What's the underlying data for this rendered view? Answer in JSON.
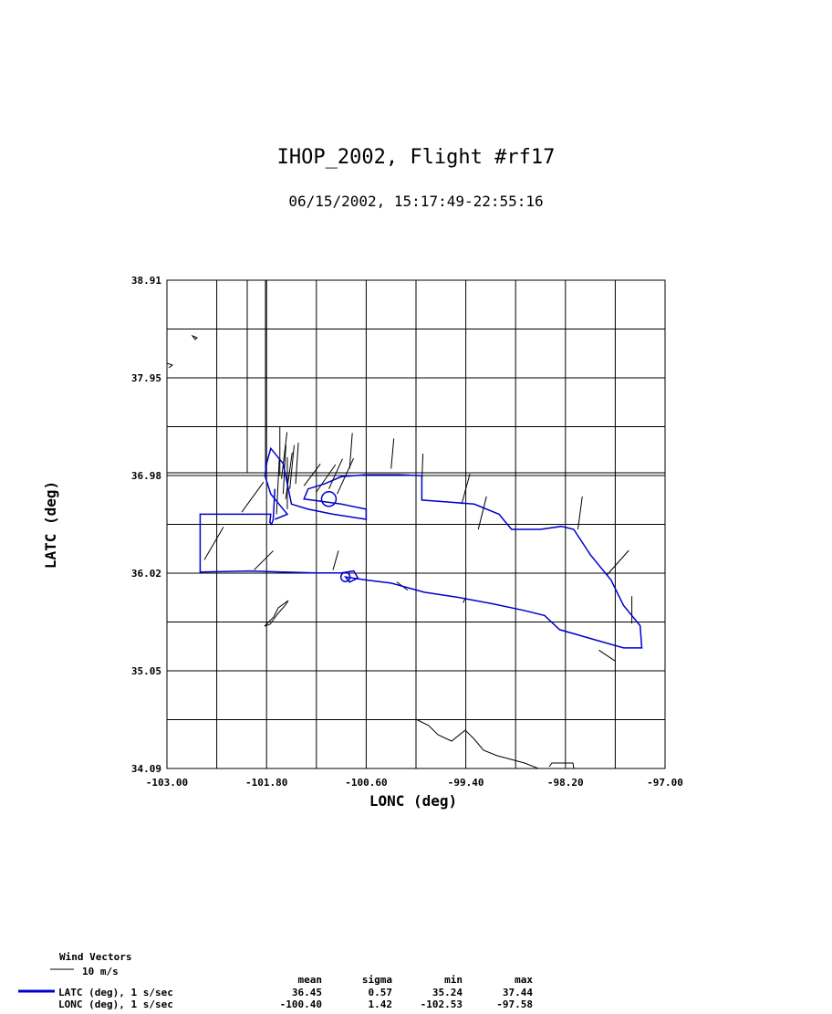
{
  "chart_data": {
    "type": "line",
    "title": "IHOP_2002, Flight #rf17",
    "subtitle": "06/15/2002, 15:17:49-22:55:16",
    "xlabel": "LONC (deg)",
    "ylabel": "LATC (deg)",
    "xlim": [
      -103.0,
      -97.0
    ],
    "ylim": [
      34.09,
      38.91
    ],
    "x_ticks": [
      "-103.00",
      "-101.80",
      "-100.60",
      "-99.40",
      "-98.20",
      "-97.00"
    ],
    "y_ticks": [
      "38.91",
      "37.95",
      "36.98",
      "36.02",
      "35.05",
      "34.09"
    ],
    "grid": true,
    "series": [
      {
        "color": "#0000cc",
        "points": [
          [
            -101.7,
            36.85
          ],
          [
            -101.72,
            36.55
          ],
          [
            -101.74,
            36.5
          ],
          [
            -101.76,
            36.52
          ],
          [
            -101.75,
            36.6
          ],
          [
            -102.1,
            36.6
          ],
          [
            -102.6,
            36.6
          ],
          [
            -102.6,
            36.3
          ],
          [
            -102.6,
            36.03
          ],
          [
            -102.0,
            36.04
          ],
          [
            -101.6,
            36.03
          ],
          [
            -101.2,
            36.02
          ],
          [
            -100.9,
            36.02
          ],
          [
            -100.75,
            36.04
          ],
          [
            -100.7,
            35.97
          ],
          [
            -100.8,
            35.93
          ],
          [
            -100.85,
            35.98
          ],
          [
            -100.6,
            35.95
          ],
          [
            -100.3,
            35.92
          ],
          [
            -99.9,
            35.83
          ],
          [
            -99.5,
            35.78
          ],
          [
            -99.1,
            35.72
          ],
          [
            -98.7,
            35.65
          ],
          [
            -98.45,
            35.6
          ],
          [
            -98.27,
            35.46
          ],
          [
            -97.8,
            35.35
          ],
          [
            -97.5,
            35.28
          ],
          [
            -97.28,
            35.28
          ],
          [
            -97.3,
            35.5
          ],
          [
            -97.5,
            35.7
          ],
          [
            -97.65,
            35.95
          ],
          [
            -97.9,
            36.2
          ],
          [
            -98.1,
            36.45
          ],
          [
            -98.25,
            36.48
          ],
          [
            -98.5,
            36.45
          ],
          [
            -98.85,
            36.45
          ],
          [
            -99.0,
            36.6
          ],
          [
            -99.3,
            36.7
          ],
          [
            -99.6,
            36.72
          ],
          [
            -99.93,
            36.74
          ],
          [
            -99.93,
            36.98
          ],
          [
            -100.2,
            36.99
          ],
          [
            -100.6,
            36.99
          ],
          [
            -100.9,
            36.97
          ],
          [
            -101.1,
            36.9
          ],
          [
            -101.3,
            36.85
          ],
          [
            -101.35,
            36.75
          ],
          [
            -100.9,
            36.7
          ],
          [
            -100.6,
            36.65
          ],
          [
            -100.6,
            36.55
          ],
          [
            -101.0,
            36.6
          ],
          [
            -101.3,
            36.65
          ],
          [
            -101.5,
            36.7
          ],
          [
            -101.6,
            37.1
          ],
          [
            -101.75,
            37.25
          ],
          [
            -101.8,
            37.1
          ],
          [
            -101.82,
            36.98
          ],
          [
            -101.75,
            36.8
          ],
          [
            -101.65,
            36.7
          ],
          [
            -101.55,
            36.6
          ],
          [
            -101.7,
            36.55
          ]
        ]
      }
    ],
    "wind_vectors": [
      [
        -101.64,
        36.98,
        0.0,
        0.9
      ],
      [
        -101.62,
        36.95,
        0.1,
        0.85
      ],
      [
        -101.6,
        36.8,
        0.05,
        0.9
      ],
      [
        -101.57,
        36.75,
        0.12,
        0.85
      ],
      [
        -101.52,
        36.85,
        0.08,
        0.8
      ],
      [
        -101.45,
        36.9,
        0.05,
        0.75
      ],
      [
        -101.35,
        36.88,
        0.3,
        0.4
      ],
      [
        -101.2,
        36.82,
        0.35,
        0.5
      ],
      [
        -101.05,
        36.85,
        0.25,
        0.55
      ],
      [
        -100.95,
        36.8,
        0.3,
        0.65
      ],
      [
        -100.8,
        37.05,
        0.05,
        0.65
      ],
      [
        -100.3,
        37.05,
        0.05,
        0.55
      ],
      [
        -99.93,
        36.9,
        0.02,
        0.55
      ],
      [
        -99.45,
        36.7,
        0.15,
        0.55
      ],
      [
        -99.25,
        36.45,
        0.15,
        0.6
      ],
      [
        -98.05,
        36.45,
        0.08,
        0.6
      ],
      [
        -97.7,
        36.0,
        0.4,
        0.45
      ],
      [
        -97.4,
        35.52,
        0.0,
        0.5
      ],
      [
        -97.6,
        35.15,
        -0.3,
        0.2
      ],
      [
        -99.4,
        35.78,
        -0.05,
        -0.1
      ],
      [
        -100.1,
        35.85,
        -0.2,
        0.15
      ],
      [
        -101.0,
        36.05,
        0.1,
        0.35
      ],
      [
        -101.95,
        36.05,
        0.35,
        0.35
      ],
      [
        -102.55,
        36.15,
        0.35,
        0.6
      ],
      [
        -102.1,
        36.62,
        0.4,
        0.55
      ],
      [
        -101.55,
        36.65,
        0.0,
        0.95
      ],
      [
        -101.68,
        36.6,
        0.05,
        1.0
      ]
    ],
    "wind_vector_scale": "10 m/s",
    "legend_title": "Wind Vectors",
    "stats": {
      "columns": [
        "mean",
        "sigma",
        "min",
        "max"
      ],
      "rows": [
        {
          "label": "LATC (deg), 1 s/sec",
          "color": "#0000cc",
          "values": [
            "36.45",
            "0.57",
            "35.24",
            "37.44"
          ]
        },
        {
          "label": "LONC (deg), 1 s/sec",
          "values": [
            "-100.40",
            "1.42",
            "-102.53",
            "-97.58"
          ]
        }
      ]
    }
  }
}
